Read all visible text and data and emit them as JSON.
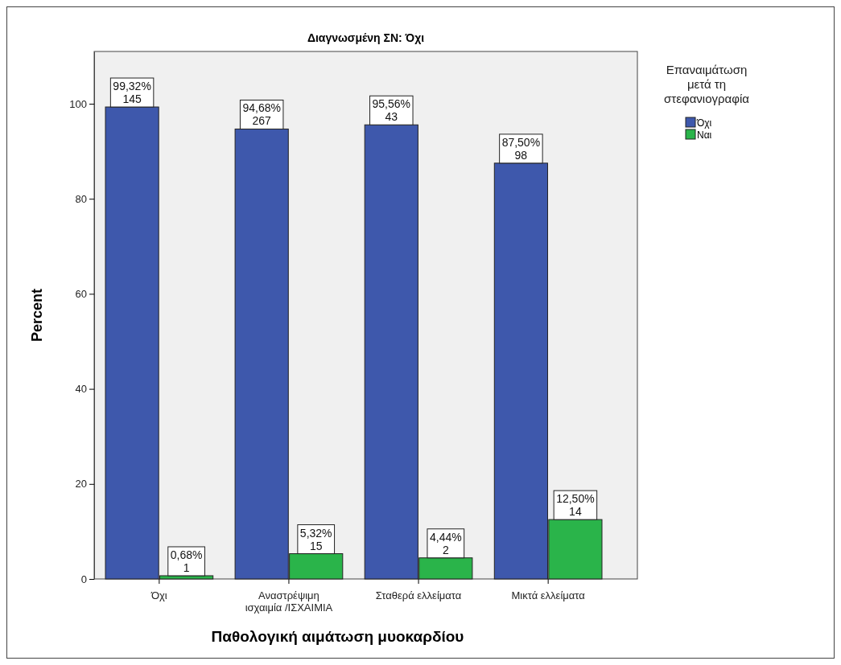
{
  "chart_data": {
    "type": "bar",
    "title": "Διαγνωσμένη ΣΝ: Όχι",
    "xlabel": "Παθολογική αιμάτωση μυοκαρδίου",
    "ylabel": "Percent",
    "legend_title": "Επαναιμάτωση μετά τη στεφανιογραφία",
    "categories": [
      "Όχι",
      "Αναστρέψιμη ισχαιμία  /ΙΣΧΑΙΜΙΑ",
      "Σταθερά ελλείματα",
      "Μικτά ελλείματα"
    ],
    "series": [
      {
        "name": "Όχι",
        "color": "#3e58ac",
        "values": [
          99.32,
          94.68,
          95.56,
          87.5
        ],
        "value_labels": [
          "99,32%\n145",
          "94,68%\n267",
          "95,56%\n43",
          "87,50%\n98"
        ]
      },
      {
        "name": "Ναι",
        "color": "#2ab44a",
        "values": [
          0.68,
          5.32,
          4.44,
          12.5
        ],
        "value_labels": [
          "0,68%\n1",
          "5,32%\n15",
          "4,44%\n2",
          "12,50%\n14"
        ]
      }
    ],
    "ylim": [
      0,
      111
    ],
    "yticks": [
      0,
      20,
      40,
      60,
      80,
      100
    ],
    "grid": false,
    "legend": "right"
  }
}
